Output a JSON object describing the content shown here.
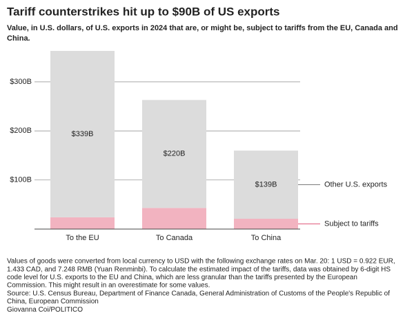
{
  "chart_data": {
    "type": "stacked_bar",
    "title": "Tariff counterstrikes hit up to $90B of US exports",
    "subtitle": [
      "Value, in U.S. dollars, of U.S. exports in 2024 that are, or might be, subject to tariffs from the EU, Canada and",
      "China."
    ],
    "categories": [
      "To the EU",
      "To Canada",
      "To China"
    ],
    "series": [
      {
        "name": "Subject to tariffs",
        "color": "#f2b3c0",
        "label_color": "#d6204e",
        "values": [
          24,
          43,
          21
        ]
      },
      {
        "name": "Other U.S. exports",
        "color": "#dcdcdc",
        "label_color": "#666666",
        "values": [
          339,
          220,
          139
        ],
        "value_labels": [
          "$339B",
          "$220B",
          "$139B"
        ]
      }
    ],
    "ylim": [
      0,
      370
    ],
    "yticks": [
      {
        "value": 100,
        "label": "$100B"
      },
      {
        "value": 200,
        "label": "$200B"
      },
      {
        "value": 300,
        "label": "$300B"
      }
    ],
    "grid": true,
    "notes": [
      "Values of goods were converted from local currency to USD with the following exchange rates on Mar. 20: 1 USD = 0.922 EUR,",
      "1.433 CAD, and 7.248 RMB (Yuan Renminbi). To calculate the estimated impact of the tariffs, data was obtained by 6-digit HS",
      "code level for U.S. exports to the EU and China, which are less granular than the tariffs presented by the European",
      "Commission. This might result in an overestimate for some values.",
      "Source: U.S. Census Bureau, Department of Finance Canada, General Administration of Customs of the People's Republic of",
      "China, European Commission",
      "Giovanna Coi/POLITICO"
    ]
  }
}
